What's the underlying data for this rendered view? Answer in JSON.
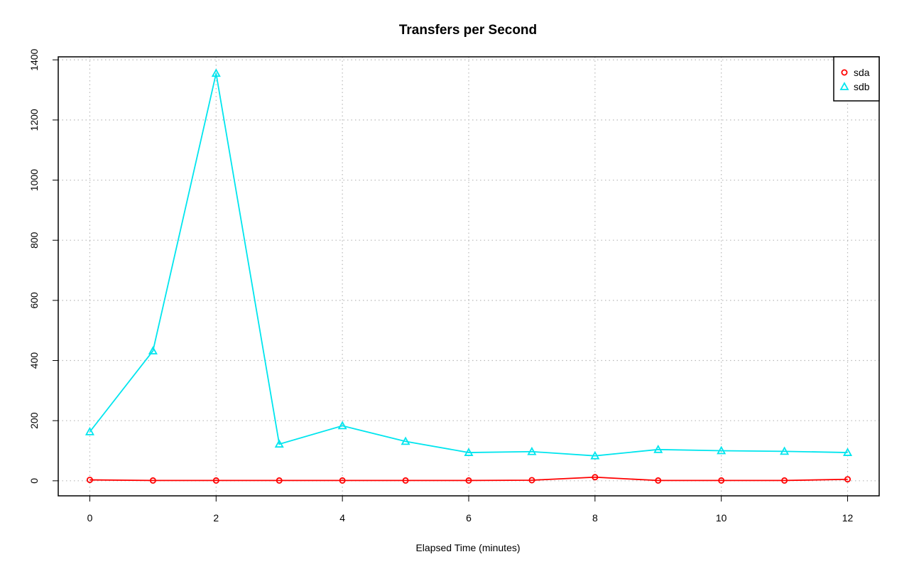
{
  "chart_data": {
    "type": "line",
    "title": "Transfers per Second",
    "xlabel": "Elapsed Time (minutes)",
    "ylabel": "",
    "x": [
      0,
      1,
      2,
      3,
      4,
      5,
      6,
      7,
      8,
      9,
      10,
      11,
      12
    ],
    "xlim": [
      -0.5,
      12.5
    ],
    "ylim": [
      -50,
      1410
    ],
    "x_ticks": [
      0,
      2,
      4,
      6,
      8,
      10,
      12
    ],
    "y_ticks": [
      0,
      200,
      400,
      600,
      800,
      1000,
      1200,
      1400
    ],
    "grid": true,
    "legend_position": "top-right",
    "series": [
      {
        "name": "sda",
        "color": "#ff0000",
        "marker": "circle",
        "values": [
          3,
          1,
          1,
          1,
          1,
          1,
          1,
          2,
          12,
          1,
          1,
          1,
          5
        ]
      },
      {
        "name": "sdb",
        "color": "#00e5ee",
        "marker": "triangle",
        "values": [
          163,
          432,
          1355,
          122,
          183,
          131,
          94,
          97,
          83,
          104,
          100,
          98,
          94
        ]
      }
    ]
  }
}
